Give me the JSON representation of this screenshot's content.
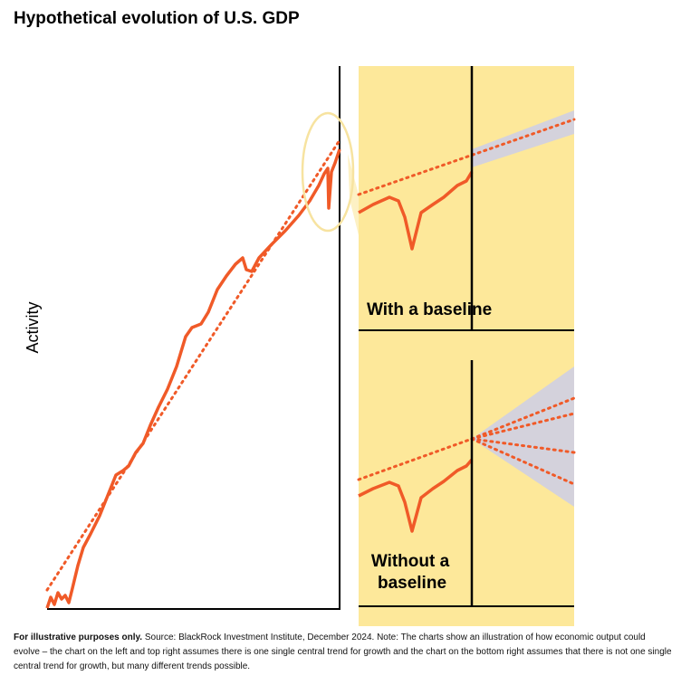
{
  "title": "Hypothetical evolution of U.S. GDP",
  "y_axis_label": "Activity",
  "panels": [
    {
      "label": "With a baseline"
    },
    {
      "label_lines": [
        "Without a",
        "baseline"
      ]
    }
  ],
  "footnote": {
    "bold": "For illustrative purposes only.",
    "text": "Source: BlackRock Investment Institute, December 2024. Note: The charts show an illustration of how economic output could evolve – the chart on the left and top right assumes there is one single central trend for growth and the chart on the bottom right assumes that there is not one single central trend for growth, but many different trends possible."
  }
}
